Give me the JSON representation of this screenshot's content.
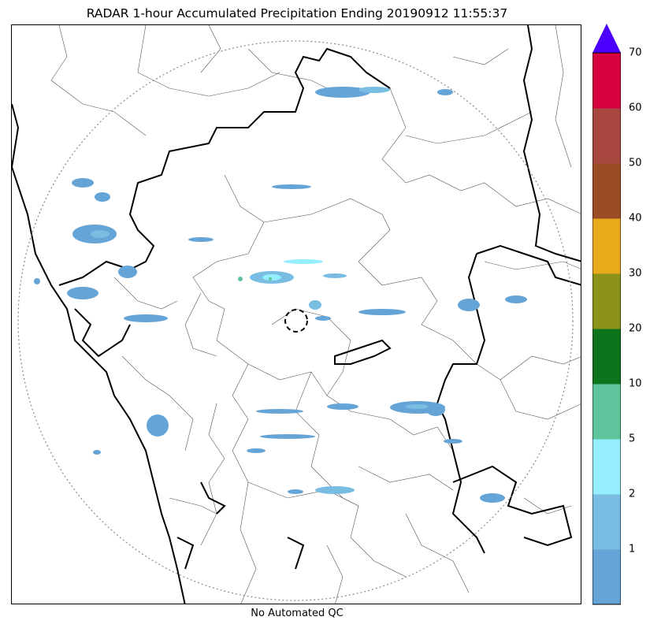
{
  "title": "RADAR 1-hour Accumulated Precipitation Ending 20190912 11:55:37",
  "footer": "No Automated QC",
  "colorbar": {
    "levels": [
      {
        "label": "",
        "color": "#65a4d6"
      },
      {
        "label": "1",
        "color": "#79bde3"
      },
      {
        "label": "2",
        "color": "#95eefd"
      },
      {
        "label": "5",
        "color": "#5dc49c"
      },
      {
        "label": "10",
        "color": "#0d741d"
      },
      {
        "label": "20",
        "color": "#8b9418"
      },
      {
        "label": "30",
        "color": "#e8a91a"
      },
      {
        "label": "40",
        "color": "#9a4c27"
      },
      {
        "label": "50",
        "color": "#a8473f"
      },
      {
        "label": "60",
        "color": "#d5003f"
      },
      {
        "label": "70",
        "color": "#4b00ff"
      }
    ],
    "overflow_color": "#4b00ff"
  }
}
